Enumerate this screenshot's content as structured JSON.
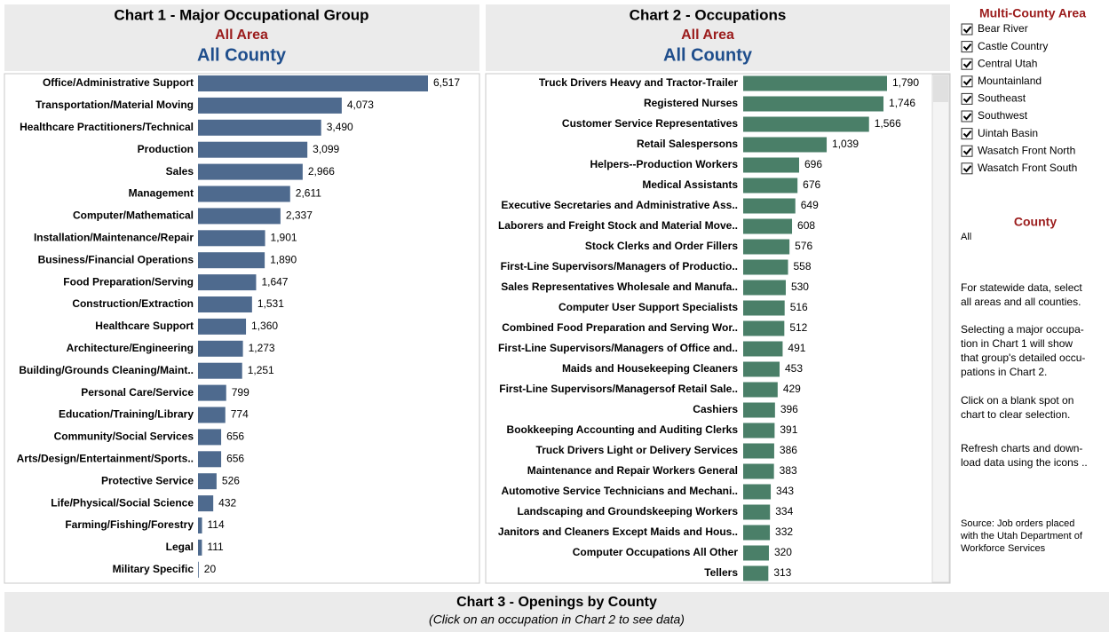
{
  "chart_data": [
    {
      "type": "barh",
      "title": "Chart 1 - Major Occupational Group",
      "subtitle": "All Area",
      "subtitle2": "All County",
      "color": "#4e6a8e",
      "categories": [
        "Office/Administrative Support",
        "Transportation/Material Moving",
        "Healthcare Practitioners/Technical",
        "Production",
        "Sales",
        "Management",
        "Computer/Mathematical",
        "Installation/Maintenance/Repair",
        "Business/Financial Operations",
        "Food Preparation/Serving",
        "Construction/Extraction",
        "Healthcare Support",
        "Architecture/Engineering",
        "Building/Grounds Cleaning/Maint..",
        "Personal Care/Service",
        "Education/Training/Library",
        "Community/Social Services",
        "Arts/Design/Entertainment/Sports..",
        "Protective Service",
        "Life/Physical/Social Science",
        "Farming/Fishing/Forestry",
        "Legal",
        "Military Specific"
      ],
      "values": [
        6517,
        4073,
        3490,
        3099,
        2966,
        2611,
        2337,
        1901,
        1890,
        1647,
        1531,
        1360,
        1273,
        1251,
        799,
        774,
        656,
        656,
        526,
        432,
        114,
        111,
        20
      ],
      "value_labels": [
        "6,517",
        "4,073",
        "3,490",
        "3,099",
        "2,966",
        "2,611",
        "2,337",
        "1,901",
        "1,890",
        "1,647",
        "1,531",
        "1,360",
        "1,273",
        "1,251",
        "799",
        "774",
        "656",
        "656",
        "526",
        "432",
        "114",
        "111",
        "20"
      ]
    },
    {
      "type": "barh",
      "title": "Chart 2 - Occupations",
      "subtitle": "All Area",
      "subtitle2": "All County",
      "color": "#4a7f68",
      "categories": [
        "Truck Drivers Heavy and Tractor-Trailer",
        "Registered Nurses",
        "Customer Service Representatives",
        "Retail Salespersons",
        "Helpers--Production Workers",
        "Medical Assistants",
        "Executive Secretaries and Administrative Ass..",
        "Laborers and Freight Stock and Material Move..",
        "Stock Clerks and Order Fillers",
        "First-Line Supervisors/Managers of Productio..",
        "Sales Representatives Wholesale and Manufa..",
        "Computer User Support Specialists",
        "Combined Food Preparation and Serving Wor..",
        "First-Line Supervisors/Managers of Office and..",
        "Maids and Housekeeping Cleaners",
        "First-Line Supervisors/Managersof Retail Sale..",
        "Cashiers",
        "Bookkeeping Accounting and Auditing Clerks",
        "Truck Drivers Light or Delivery Services",
        "Maintenance and Repair Workers General",
        "Automotive Service Technicians and Mechani..",
        "Landscaping and Groundskeeping Workers",
        "Janitors and Cleaners Except Maids and Hous..",
        "Computer Occupations All Other",
        "Tellers"
      ],
      "values": [
        1790,
        1746,
        1566,
        1039,
        696,
        676,
        649,
        608,
        576,
        558,
        530,
        516,
        512,
        491,
        453,
        429,
        396,
        391,
        386,
        383,
        343,
        334,
        332,
        320,
        313
      ],
      "value_labels": [
        "1,790",
        "1,746",
        "1,566",
        "1,039",
        "696",
        "676",
        "649",
        "608",
        "576",
        "558",
        "530",
        "516",
        "512",
        "491",
        "453",
        "429",
        "396",
        "391",
        "386",
        "383",
        "343",
        "334",
        "332",
        "320",
        "313"
      ]
    }
  ],
  "sidebar": {
    "filter_title": "Multi-County Area",
    "areas": [
      "Bear River",
      "Castle Country",
      "Central Utah",
      "Mountainland",
      "Southeast",
      "Southwest",
      "Uintah Basin",
      "Wasatch Front North",
      "Wasatch Front South"
    ],
    "county_title": "County",
    "county_value": "All",
    "notes": [
      [
        "For statewide data, select",
        "all areas and all counties."
      ],
      [
        "Selecting a major occupa-",
        "tion in Chart 1 will show",
        "that group's detailed occu-",
        "pations in Chart 2."
      ],
      [
        "Click on a blank spot on",
        "chart to clear selection."
      ],
      [
        "Refresh charts and down-",
        "load data using the icons .."
      ]
    ],
    "source": [
      "Source: Job orders placed",
      "with the Utah Department of",
      "Workforce Services"
    ]
  },
  "chart3": {
    "title": "Chart 3 - Openings by County",
    "subtitle": "(Click on an occupation in Chart 2 to see data)"
  }
}
